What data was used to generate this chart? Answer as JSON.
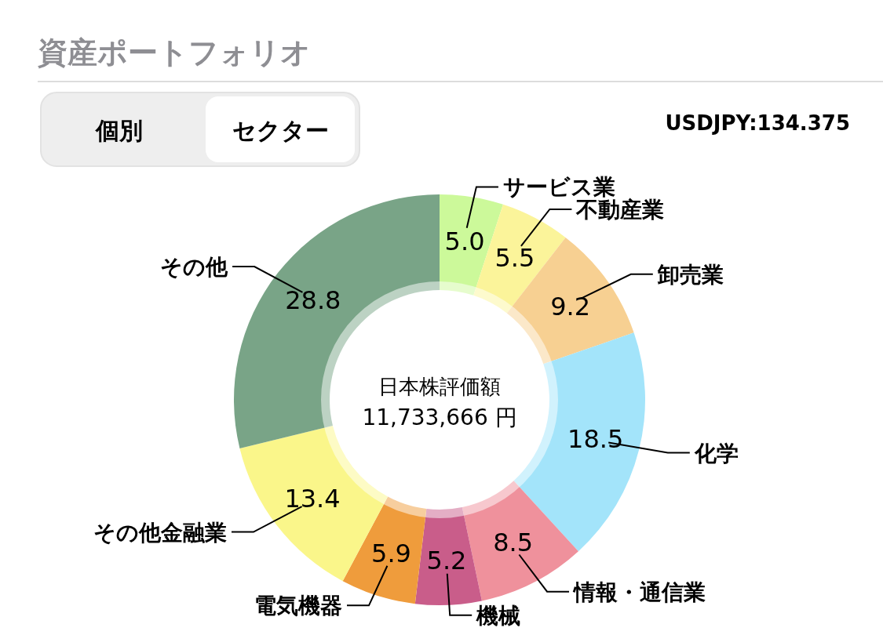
{
  "chart_data": {
    "type": "donut",
    "title": "資産ポートフォリオ",
    "categories": [
      "サービス業",
      "不動産業",
      "卸売業",
      "化学",
      "情報・通信業",
      "機械",
      "電気機器",
      "その他金融業",
      "その他"
    ],
    "values": [
      5.0,
      5.5,
      9.2,
      18.5,
      8.5,
      5.2,
      5.9,
      13.4,
      28.8
    ],
    "colors": [
      "#ccf99a",
      "#fbf49a",
      "#f7d092",
      "#a3e4fa",
      "#ef919c",
      "#c95d8a",
      "#ef9c3c",
      "#faf68a",
      "#79a487"
    ],
    "value_labels": [
      "5.0",
      "5.5",
      "9.2",
      "18.5",
      "8.5",
      "5.2",
      "5.9",
      "13.4",
      "28.8"
    ],
    "annotations": [
      "個別",
      "セクター",
      "USDJPY:134.375",
      "日本株評価額",
      "11,733,666 円"
    ]
  }
}
